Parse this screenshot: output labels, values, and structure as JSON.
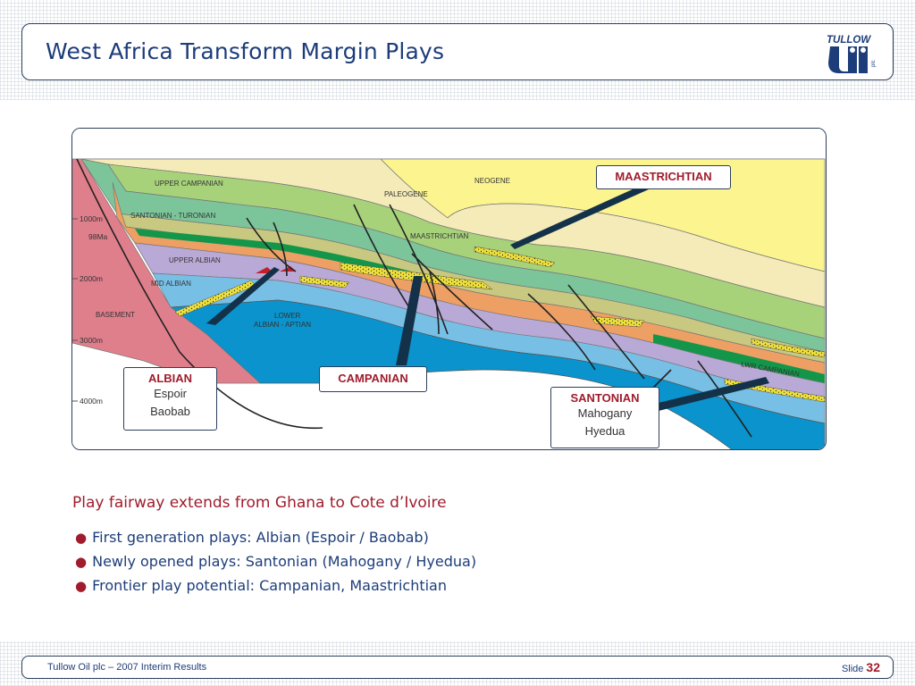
{
  "title": "West Africa Transform Margin Plays",
  "logo": {
    "word": "TULLOW",
    "plc": "plc"
  },
  "diagram": {
    "depth_labels": [
      "1000m",
      "98Ma",
      "2000m",
      "3000m",
      "4000m"
    ],
    "layer_labels": {
      "upper_campanian": "UPPER CAMPANIAN",
      "santonian_turonian": "SANTONIAN - TURONIAN",
      "upper_albian": "UPPER ALBIAN",
      "mid_albian": "MID ALBIAN",
      "basement": "BASEMENT",
      "lower_albian_aptian_1": "LOWER",
      "lower_albian_aptian_2": "ALBIAN - APTIAN",
      "paleogene": "PALEOGENE",
      "neogene": "NEOGENE",
      "maastrichtian": "MAASTRICHTIAN",
      "lwr_campanian": "LWR CAMPANIAN"
    },
    "colors": {
      "basement": "#e07f8c",
      "lower_albian": "#0a93cc",
      "mid_albian": "#78bfe6",
      "upper_albian": "#b9a9d6",
      "santonian": "#ee9f64",
      "turonian_green": "#13964a",
      "upper_campanian": "#7cc59a",
      "maastrichtian": "#a7d27a",
      "olive": "#c8c880",
      "paleogene": "#f4ebb8",
      "neogene": "#fbf48f",
      "sand": "#eee03a",
      "callout_fill": "#13324a",
      "title_text": "#1d3d7a",
      "accent_red": "#a01c2c"
    }
  },
  "callouts": {
    "maastrichtian": {
      "title": "MAASTRICHTIAN"
    },
    "albian": {
      "title": "ALBIAN",
      "items": [
        "Espoir",
        "Baobab"
      ]
    },
    "campanian": {
      "title": "CAMPANIAN"
    },
    "santonian": {
      "title": "SANTONIAN",
      "items": [
        "Mahogany",
        "Hyedua"
      ]
    }
  },
  "fairway_heading": "Play fairway extends from Ghana to Cote d’Ivoire",
  "bullets": [
    "First generation plays: Albian (Espoir / Baobab)",
    "Newly opened plays: Santonian (Mahogany / Hyedua)",
    "Frontier play potential: Campanian, Maastrichtian"
  ],
  "footer": {
    "left": "Tullow Oil plc – 2007 Interim Results",
    "slide_label": "Slide",
    "slide_number": "32"
  }
}
